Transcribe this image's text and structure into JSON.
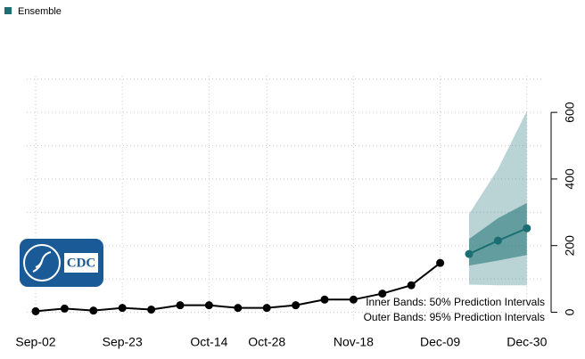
{
  "chart_data": {
    "type": "line",
    "legend": "top-left",
    "categories": [
      "Sep-02",
      null,
      null,
      "Sep-23",
      null,
      null,
      "Oct-14",
      null,
      "Oct-28",
      null,
      null,
      "Nov-18",
      null,
      null,
      "Dec-09",
      null,
      null,
      "Dec-30"
    ],
    "observed": {
      "color": "#000000",
      "values": [
        3,
        11,
        5,
        13,
        8,
        21,
        21,
        13,
        13,
        21,
        38,
        38,
        56,
        81,
        148,
        null,
        null,
        null
      ]
    },
    "series": [
      {
        "name": "Ensemble",
        "color": "#1b6f73",
        "band_color": "#1b6f73",
        "values": [
          null,
          null,
          null,
          null,
          null,
          null,
          null,
          null,
          null,
          null,
          null,
          null,
          null,
          null,
          null,
          175,
          215,
          252
        ],
        "lower50": [
          null,
          null,
          null,
          null,
          null,
          null,
          null,
          null,
          null,
          null,
          null,
          null,
          null,
          null,
          null,
          140,
          155,
          172
        ],
        "upper50": [
          null,
          null,
          null,
          null,
          null,
          null,
          null,
          null,
          null,
          null,
          null,
          null,
          null,
          null,
          null,
          220,
          282,
          328
        ],
        "lower95": [
          null,
          null,
          null,
          null,
          null,
          null,
          null,
          null,
          null,
          null,
          null,
          null,
          null,
          null,
          null,
          83,
          81,
          81
        ],
        "upper95": [
          null,
          null,
          null,
          null,
          null,
          null,
          null,
          null,
          null,
          null,
          null,
          null,
          null,
          null,
          null,
          295,
          430,
          604
        ]
      }
    ],
    "ylim": [
      -20,
      710
    ],
    "yticks": [
      0,
      200,
      400,
      600
    ],
    "ygrid": [
      0,
      100,
      200,
      300,
      400,
      500,
      600,
      700
    ],
    "annotations": [
      "Inner Bands: 50% Prediction Intervals",
      "Outer Bands: 95% Prediction Intervals"
    ],
    "logo_text": "CDC"
  }
}
